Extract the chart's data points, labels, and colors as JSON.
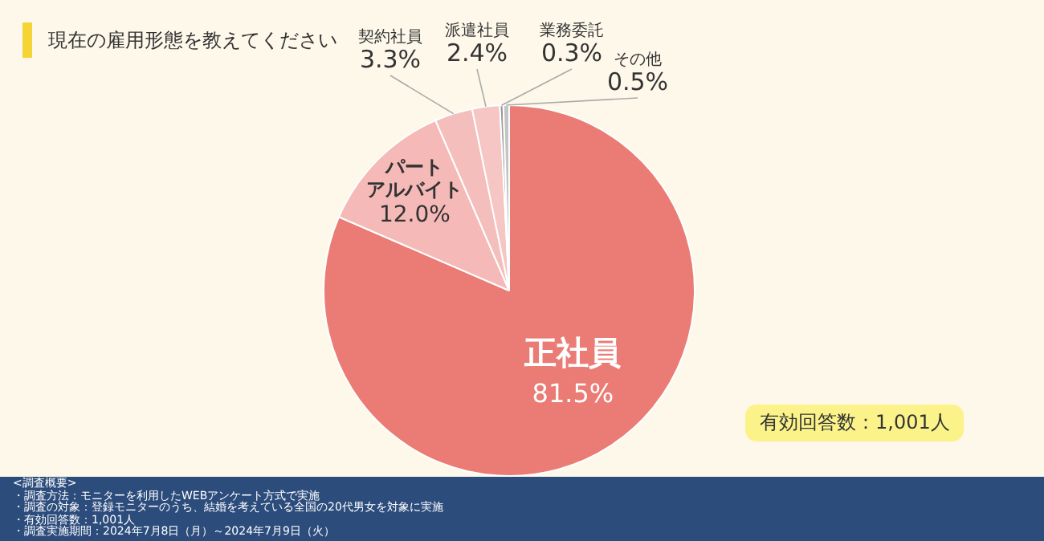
{
  "chart_data": {
    "type": "pie",
    "title": "現在の雇用形態を教えてください",
    "categories": [
      "正社員",
      "パートアルバイト",
      "契約社員",
      "派遣社員",
      "業務委託",
      "その他"
    ],
    "values": [
      81.5,
      12.0,
      3.3,
      2.4,
      0.3,
      0.5
    ],
    "value_labels": [
      "81.5%",
      "12.0%",
      "3.3%",
      "2.4%",
      "0.3%",
      "0.5%"
    ],
    "colors": [
      "#ea7c75",
      "#f5b9b7",
      "#f4bebc",
      "#f5c6c4",
      "#9a9a9a",
      "#c4c4c4"
    ],
    "legend": false,
    "annotations": [
      "有効回答数：1,001人",
      "<調査概要>",
      "・調査方法：モニターを利用したWEBアンケート方式で実施",
      "・調査の対象：登録モニターのうち、結婚を考えている全国の20代男女を対象に実施",
      "・有効回答数：1,001人",
      "・調査実施期間：2024年7月8日（月）～2024年7月9日（火）"
    ]
  }
}
